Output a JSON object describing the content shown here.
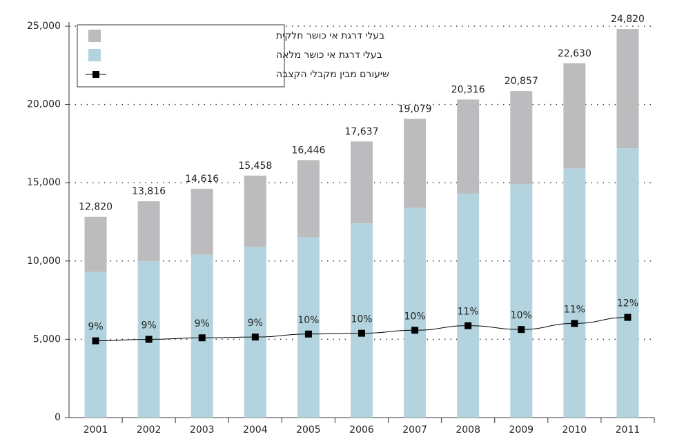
{
  "chart_data": {
    "type": "stacked-bar-line",
    "categories": [
      "2001",
      "2002",
      "2003",
      "2004",
      "2005",
      "2006",
      "2007",
      "2008",
      "2009",
      "2010",
      "2011"
    ],
    "series": [
      {
        "name": "בעלי דרגת אי כושר מלאה",
        "color": "#b3d4de",
        "values": [
          9300,
          10000,
          10400,
          10900,
          11500,
          12400,
          13400,
          14300,
          14900,
          15900,
          17200
        ]
      },
      {
        "name": "בעלי דרגת אי כושר חלקית",
        "color": "#bcbcbe",
        "values": [
          3520,
          3816,
          4216,
          4558,
          4946,
          5237,
          5679,
          6016,
          5957,
          6730,
          7620
        ]
      },
      {
        "name": "שיעורם מבין מקבלי הקצבה",
        "color": "#000000",
        "axis": "y2",
        "values": [
          8.9,
          9.1,
          9.3,
          9.4,
          9.8,
          9.9,
          10.3,
          10.9,
          10.4,
          11.2,
          12.0
        ],
        "value_labels": [
          "9%",
          "9%",
          "9%",
          "9%",
          "10%",
          "10%",
          "10%",
          "11%",
          "10%",
          "11%",
          "12%"
        ]
      }
    ],
    "totals": [
      12820,
      13816,
      14616,
      15458,
      16446,
      17637,
      19079,
      20316,
      20857,
      22630,
      24820
    ],
    "total_labels": [
      "12,820",
      "13,816",
      "14,616",
      "15,458",
      "16,446",
      "17,637",
      "19,079",
      "20,316",
      "20,857",
      "22,630",
      "24,820"
    ],
    "ylim": [
      0,
      25000
    ],
    "yticks": [
      0,
      {
        "value": 5000,
        "label": "5,000"
      },
      {
        "value": 10000,
        "label": "10,000"
      },
      {
        "value": 15000,
        "label": "15,000"
      },
      {
        "value": 20000,
        "label": "20,000"
      },
      {
        "value": 25000,
        "label": "25,000"
      }
    ],
    "y2lim": [
      -1.24,
      50.48
    ],
    "grid": true,
    "legend": "top-left"
  }
}
